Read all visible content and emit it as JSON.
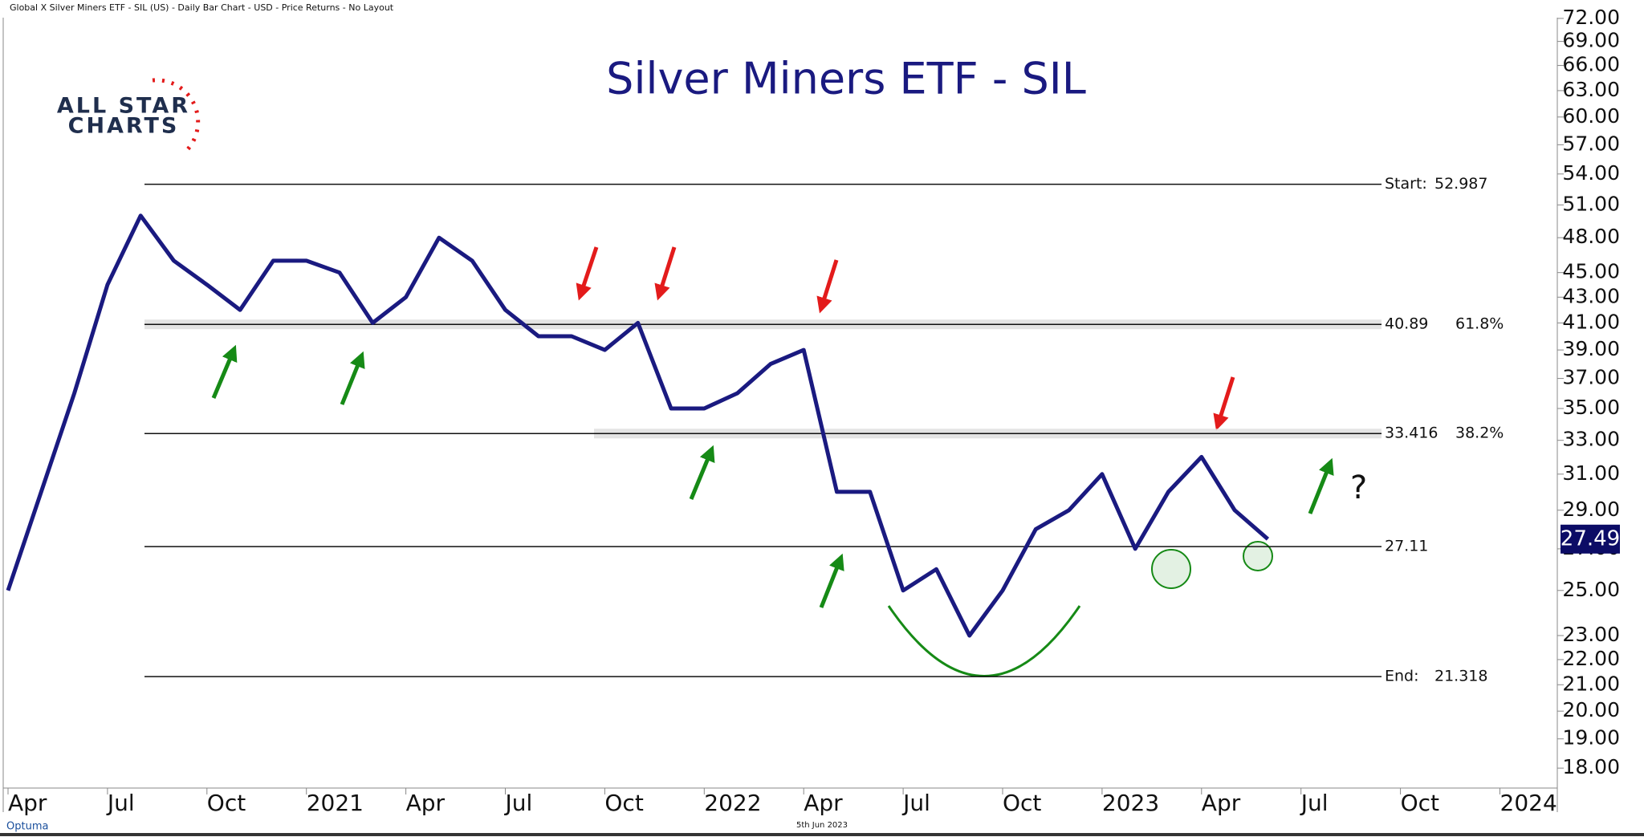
{
  "header": "Global X Silver Miners ETF - SIL (US) - Daily Bar Chart - USD - Price Returns - No Layout",
  "logo": {
    "line1": "ALL STAR",
    "line2": "CHARTS"
  },
  "footer": {
    "date": "5th Jun 2023",
    "brand": "Optuma"
  },
  "chart_data": {
    "type": "line",
    "title": "Silver Miners ETF - SIL",
    "log_scale": true,
    "x": [
      "2020-04",
      "2020-05",
      "2020-06",
      "2020-07",
      "2020-08",
      "2020-09",
      "2020-10",
      "2020-11",
      "2020-12",
      "2021-01",
      "2021-02",
      "2021-03",
      "2021-04",
      "2021-05",
      "2021-06",
      "2021-07",
      "2021-08",
      "2021-09",
      "2021-10",
      "2021-11",
      "2021-12",
      "2022-01",
      "2022-02",
      "2022-03",
      "2022-04",
      "2022-05",
      "2022-06",
      "2022-07",
      "2022-08",
      "2022-09",
      "2022-10",
      "2022-11",
      "2022-12",
      "2023-01",
      "2023-02",
      "2023-03",
      "2023-04",
      "2023-05",
      "2023-06"
    ],
    "series": [
      {
        "name": "SIL",
        "color": "#1a1a80",
        "values": [
          25,
          30,
          36,
          44,
          50,
          46,
          44,
          42,
          46,
          46,
          45,
          41,
          43,
          48,
          46,
          42,
          40,
          40,
          39,
          41,
          35,
          35,
          36,
          38,
          39,
          30,
          30,
          25,
          26,
          23,
          25,
          28,
          29,
          31,
          27,
          30,
          32,
          29,
          27.49
        ]
      }
    ],
    "xticks": [
      {
        "value": "2020-04",
        "label": "Apr"
      },
      {
        "value": "2020-07",
        "label": "Jul"
      },
      {
        "value": "2020-10",
        "label": "Oct"
      },
      {
        "value": "2021-01",
        "label": "2021"
      },
      {
        "value": "2021-04",
        "label": "Apr"
      },
      {
        "value": "2021-07",
        "label": "Jul"
      },
      {
        "value": "2021-10",
        "label": "Oct"
      },
      {
        "value": "2022-01",
        "label": "2022"
      },
      {
        "value": "2022-04",
        "label": "Apr"
      },
      {
        "value": "2022-07",
        "label": "Jul"
      },
      {
        "value": "2022-10",
        "label": "Oct"
      },
      {
        "value": "2023-01",
        "label": "2023"
      },
      {
        "value": "2023-04",
        "label": "Apr"
      },
      {
        "value": "2023-07",
        "label": "Jul"
      },
      {
        "value": "2023-10",
        "label": "Oct"
      },
      {
        "value": "2024-01",
        "label": "2024"
      }
    ],
    "ylim": [
      17.4,
      72.1
    ],
    "yticks": [
      {
        "value": 18,
        "label": "18.00"
      },
      {
        "value": 19,
        "label": "19.00"
      },
      {
        "value": 20,
        "label": "20.00"
      },
      {
        "value": 21,
        "label": "21.00"
      },
      {
        "value": 22,
        "label": "22.00"
      },
      {
        "value": 23,
        "label": "23.00"
      },
      {
        "value": 25,
        "label": "25.00"
      },
      {
        "value": 27,
        "label": "27.00"
      },
      {
        "value": 29,
        "label": "29.00"
      },
      {
        "value": 31,
        "label": "31.00"
      },
      {
        "value": 33,
        "label": "33.00"
      },
      {
        "value": 35,
        "label": "35.00"
      },
      {
        "value": 37,
        "label": "37.00"
      },
      {
        "value": 39,
        "label": "39.00"
      },
      {
        "value": 41,
        "label": "41.00"
      },
      {
        "value": 43,
        "label": "43.00"
      },
      {
        "value": 45,
        "label": "45.00"
      },
      {
        "value": 48,
        "label": "48.00"
      },
      {
        "value": 51,
        "label": "51.00"
      },
      {
        "value": 54,
        "label": "54.00"
      },
      {
        "value": 57,
        "label": "57.00"
      },
      {
        "value": 60,
        "label": "60.00"
      },
      {
        "value": 63,
        "label": "63.00"
      },
      {
        "value": 66,
        "label": "66.00"
      },
      {
        "value": 69,
        "label": "69.00"
      },
      {
        "value": 72,
        "label": "72.00"
      }
    ],
    "levels": [
      {
        "label": "Start:",
        "value": 52.987
      },
      {
        "value": 40.89,
        "ratio": 61.8,
        "ratio_label": "61.8%",
        "band": true
      },
      {
        "value": 33.416,
        "ratio": 38.2,
        "ratio_label": "38.2%",
        "band": true
      },
      {
        "value": 27.11
      },
      {
        "label": "End:",
        "value": 21.318
      }
    ],
    "last_price": 27.49,
    "annotation": "?"
  }
}
